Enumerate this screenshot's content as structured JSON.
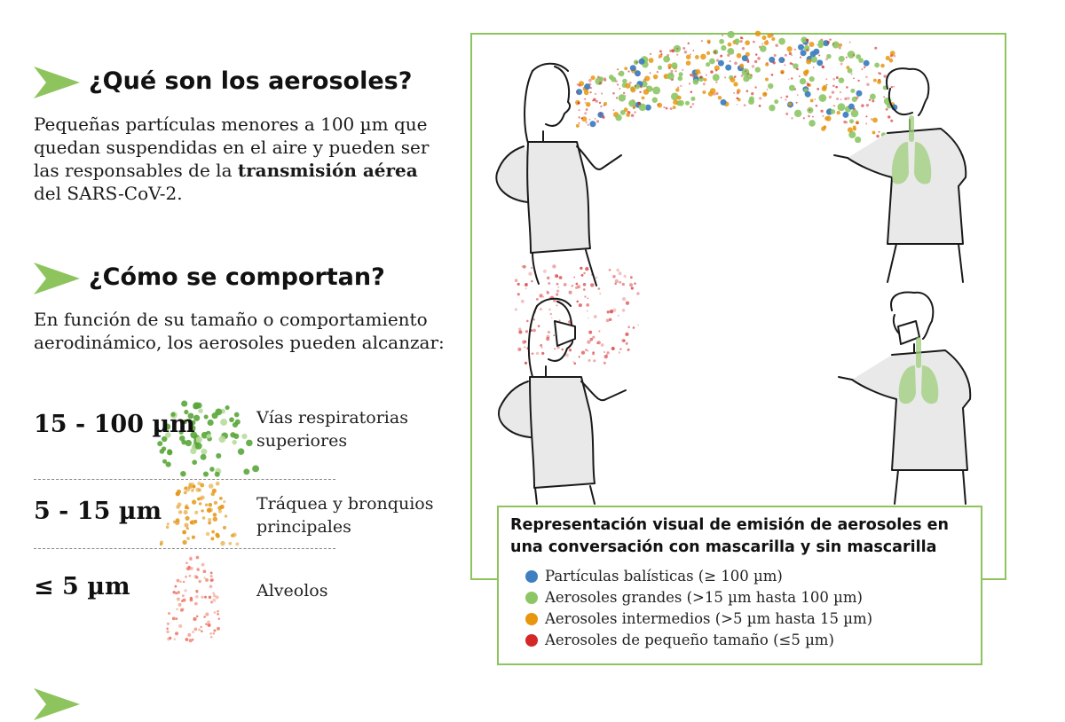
{
  "sections": [
    {
      "title": "¿Qué son los aerosoles?",
      "body_parts": [
        "Pequeñas partículas menores a 100 µm que quedan suspendidas en el aire y pueden ser las responsables de la ",
        "transmisión aérea",
        " del SARS-CoV-2."
      ]
    },
    {
      "title": "¿Cómo se comportan?",
      "body": "En función de su tamaño o comportamiento aerodinámico, los aerosoles pueden alcanzar:"
    }
  ],
  "size_rows": [
    {
      "size": "15 - 100 µm",
      "region": "Vías respiratorias superiores",
      "color": "#5aa63a"
    },
    {
      "size": "5 - 15 µm",
      "region": "Tráquea y bronquios principales",
      "color": "#e39a1e"
    },
    {
      "size": "≤ 5 µm",
      "region": "Alveolos",
      "color": "#ea6a55"
    }
  ],
  "legend": {
    "title": "Representación visual de emisión de aerosoles en una conversación con mascarilla y sin mascarilla",
    "items": [
      {
        "label": "Partículas balísticas (≥ 100 µm)",
        "color": "#3f7fc0"
      },
      {
        "label": "Aerosoles grandes (>15 µm hasta 100 µm)",
        "color": "#8cc665"
      },
      {
        "label": "Aerosoles intermedios (>5 µm hasta 15 µm)",
        "color": "#e8960f"
      },
      {
        "label": "Aerosoles de pequeño tamaño (≤5 µm)",
        "color": "#d42828"
      }
    ]
  },
  "colors": {
    "accent_green": "#8ec45e",
    "lung_green": "#9dcd7a",
    "shirt_gray": "#e9e9e9"
  },
  "icons": [
    "arrow-icon"
  ]
}
